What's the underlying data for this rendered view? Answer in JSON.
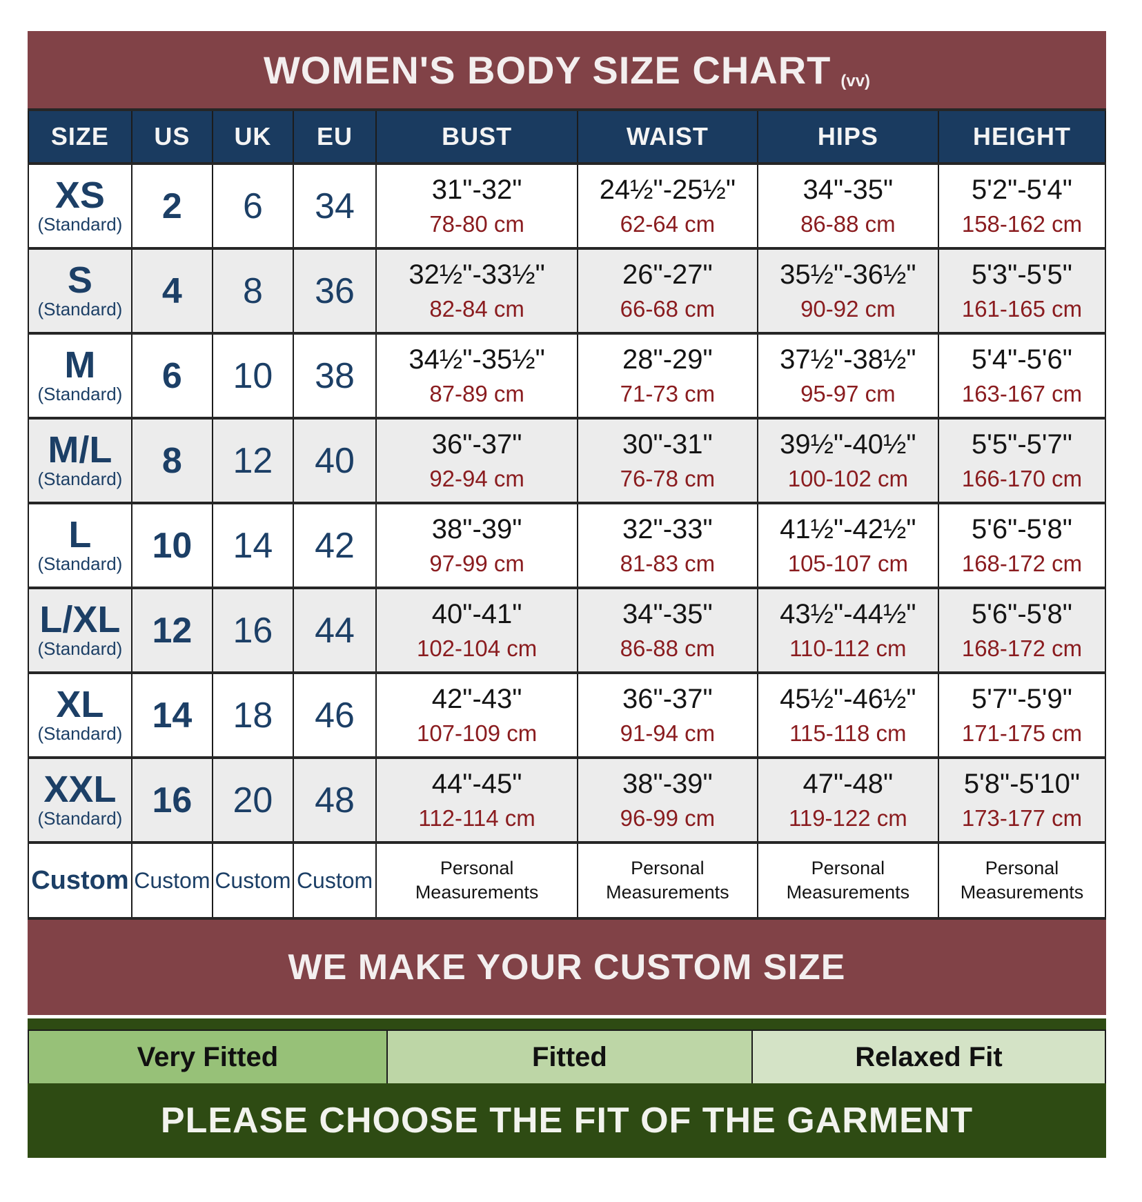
{
  "title": {
    "text": "WOMEN'S BODY SIZE CHART",
    "suffix": "(vv)"
  },
  "colors": {
    "maroon_banner": "#814247",
    "navy_header": "#1a3b60",
    "navy_text": "#1c3f66",
    "inch_text": "#141414",
    "cm_text": "#8a1c1f",
    "alt_row": "#ececec",
    "dark_green_banner": "#2e4b13"
  },
  "table": {
    "headers": [
      "SIZE",
      "US",
      "UK",
      "EU",
      "BUST",
      "WAIST",
      "HIPS",
      "HEIGHT"
    ],
    "rows": [
      {
        "size": "XS",
        "standard": "(Standard)",
        "us": "2",
        "uk": "6",
        "eu": "34",
        "bust_in": "31\"-32\"",
        "bust_cm": "78-80 cm",
        "waist_in": "24½\"-25½\"",
        "waist_cm": "62-64 cm",
        "hips_in": "34\"-35\"",
        "hips_cm": "86-88 cm",
        "height_in": "5'2\"-5'4\"",
        "height_cm": "158-162 cm"
      },
      {
        "size": "S",
        "standard": "(Standard)",
        "us": "4",
        "uk": "8",
        "eu": "36",
        "bust_in": "32½\"-33½\"",
        "bust_cm": "82-84 cm",
        "waist_in": "26\"-27\"",
        "waist_cm": "66-68 cm",
        "hips_in": "35½\"-36½\"",
        "hips_cm": "90-92 cm",
        "height_in": "5'3\"-5'5\"",
        "height_cm": "161-165 cm"
      },
      {
        "size": "M",
        "standard": "(Standard)",
        "us": "6",
        "uk": "10",
        "eu": "38",
        "bust_in": "34½\"-35½\"",
        "bust_cm": "87-89 cm",
        "waist_in": "28\"-29\"",
        "waist_cm": "71-73 cm",
        "hips_in": "37½\"-38½\"",
        "hips_cm": "95-97 cm",
        "height_in": "5'4\"-5'6\"",
        "height_cm": "163-167 cm"
      },
      {
        "size": "M/L",
        "standard": "(Standard)",
        "us": "8",
        "uk": "12",
        "eu": "40",
        "bust_in": "36\"-37\"",
        "bust_cm": "92-94 cm",
        "waist_in": "30\"-31\"",
        "waist_cm": "76-78 cm",
        "hips_in": "39½\"-40½\"",
        "hips_cm": "100-102 cm",
        "height_in": "5'5\"-5'7\"",
        "height_cm": "166-170 cm"
      },
      {
        "size": "L",
        "standard": "(Standard)",
        "us": "10",
        "uk": "14",
        "eu": "42",
        "bust_in": "38\"-39\"",
        "bust_cm": "97-99 cm",
        "waist_in": "32\"-33\"",
        "waist_cm": "81-83 cm",
        "hips_in": "41½\"-42½\"",
        "hips_cm": "105-107 cm",
        "height_in": "5'6\"-5'8\"",
        "height_cm": "168-172 cm"
      },
      {
        "size": "L/XL",
        "standard": "(Standard)",
        "us": "12",
        "uk": "16",
        "eu": "44",
        "bust_in": "40\"-41\"",
        "bust_cm": "102-104 cm",
        "waist_in": "34\"-35\"",
        "waist_cm": "86-88 cm",
        "hips_in": "43½\"-44½\"",
        "hips_cm": "110-112 cm",
        "height_in": "5'6\"-5'8\"",
        "height_cm": "168-172 cm"
      },
      {
        "size": "XL",
        "standard": "(Standard)",
        "us": "14",
        "uk": "18",
        "eu": "46",
        "bust_in": "42\"-43\"",
        "bust_cm": "107-109 cm",
        "waist_in": "36\"-37\"",
        "waist_cm": "91-94 cm",
        "hips_in": "45½\"-46½\"",
        "hips_cm": "115-118 cm",
        "height_in": "5'7\"-5'9\"",
        "height_cm": "171-175 cm"
      },
      {
        "size": "XXL",
        "standard": "(Standard)",
        "us": "16",
        "uk": "20",
        "eu": "48",
        "bust_in": "44\"-45\"",
        "bust_cm": "112-114 cm",
        "waist_in": "38\"-39\"",
        "waist_cm": "96-99 cm",
        "hips_in": "47\"-48\"",
        "hips_cm": "119-122 cm",
        "height_in": "5'8\"-5'10\"",
        "height_cm": "173-177 cm"
      }
    ],
    "custom_row": {
      "size": "Custom",
      "us": "Custom",
      "uk": "Custom",
      "eu": "Custom",
      "measure_line1": "Personal",
      "measure_line2": "Measurements"
    }
  },
  "banners": {
    "custom_size": "WE MAKE YOUR CUSTOM SIZE",
    "fit_prompt": "PLEASE CHOOSE THE FIT OF THE GARMENT"
  },
  "fit_options": [
    {
      "label": "Very Fitted",
      "color": "#97c178",
      "width": "33.3%"
    },
    {
      "label": "Fitted",
      "color": "#bdd6a6",
      "width": "33.9%"
    },
    {
      "label": "Relaxed Fit",
      "color": "#d4e3c6",
      "width": "32.8%"
    }
  ]
}
